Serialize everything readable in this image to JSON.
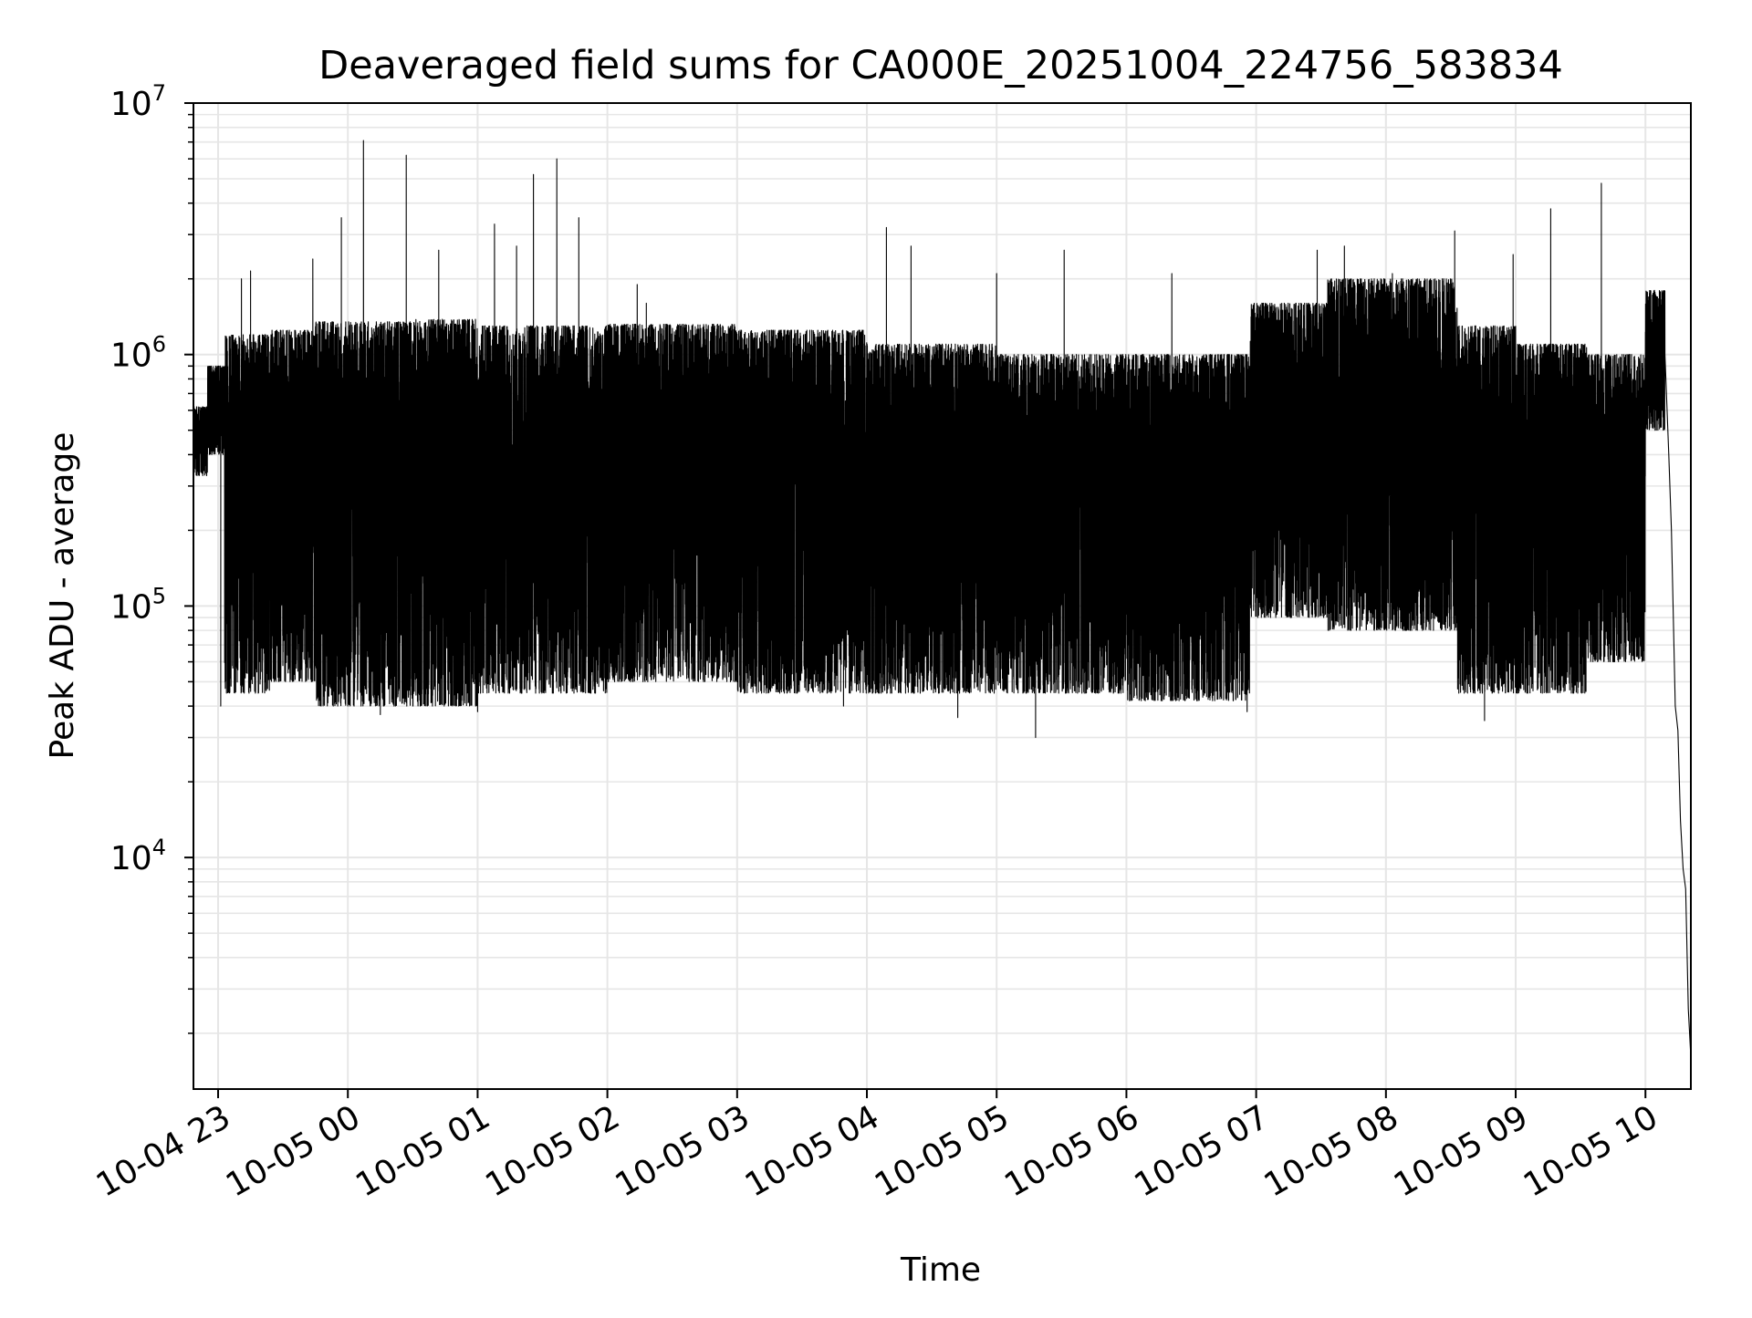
{
  "chart_data": {
    "type": "line",
    "title": "Deaveraged field sums for CA000E_20251004_224756_583834",
    "xlabel": "Time",
    "ylabel": "Peak ADU - average",
    "yscale": "log",
    "ylim": [
      1200,
      10000000
    ],
    "xlim_hours": [
      -1.19,
      10.35
    ],
    "grid": true,
    "line_color": "#000000",
    "grid_color": "#e6e6e6",
    "x_ticks": [
      {
        "hour": -1,
        "label": "10-04 23"
      },
      {
        "hour": 0,
        "label": "10-05 00"
      },
      {
        "hour": 1,
        "label": "10-05 01"
      },
      {
        "hour": 2,
        "label": "10-05 02"
      },
      {
        "hour": 3,
        "label": "10-05 03"
      },
      {
        "hour": 4,
        "label": "10-05 04"
      },
      {
        "hour": 5,
        "label": "10-05 05"
      },
      {
        "hour": 6,
        "label": "10-05 06"
      },
      {
        "hour": 7,
        "label": "10-05 07"
      },
      {
        "hour": 8,
        "label": "10-05 08"
      },
      {
        "hour": 9,
        "label": "10-05 09"
      },
      {
        "hour": 10,
        "label": "10-05 10"
      }
    ],
    "y_ticks": [
      {
        "value": 10000,
        "base": "10",
        "exp": "4"
      },
      {
        "value": 100000,
        "base": "10",
        "exp": "5"
      },
      {
        "value": 1000000,
        "base": "10",
        "exp": "6"
      },
      {
        "value": 10000000,
        "base": "10",
        "exp": "7"
      }
    ],
    "series": [
      {
        "name": "Peak ADU - average",
        "segments": [
          {
            "start": -1.19,
            "end": -1.08,
            "low": 330000,
            "high": 620000
          },
          {
            "start": -1.08,
            "end": -0.95,
            "low": 400000,
            "high": 900000
          },
          {
            "start": -0.95,
            "end": -0.6,
            "low": 45000,
            "high": 1200000
          },
          {
            "start": -0.6,
            "end": -0.25,
            "low": 50000,
            "high": 1250000
          },
          {
            "start": -0.25,
            "end": 0.5,
            "low": 40000,
            "high": 1350000
          },
          {
            "start": 0.5,
            "end": 1.0,
            "low": 40000,
            "high": 1380000
          },
          {
            "start": 1.0,
            "end": 2.0,
            "low": 45000,
            "high": 1300000
          },
          {
            "start": 2.0,
            "end": 3.0,
            "low": 50000,
            "high": 1320000
          },
          {
            "start": 3.0,
            "end": 4.0,
            "low": 45000,
            "high": 1250000
          },
          {
            "start": 4.0,
            "end": 5.0,
            "low": 45000,
            "high": 1100000
          },
          {
            "start": 5.0,
            "end": 6.0,
            "low": 45000,
            "high": 1000000
          },
          {
            "start": 6.0,
            "end": 6.95,
            "low": 42000,
            "high": 1000000
          },
          {
            "start": 6.95,
            "end": 7.55,
            "low": 90000,
            "high": 1600000
          },
          {
            "start": 7.55,
            "end": 8.55,
            "low": 80000,
            "high": 2000000
          },
          {
            "start": 8.55,
            "end": 9.0,
            "low": 45000,
            "high": 1300000
          },
          {
            "start": 9.0,
            "end": 9.55,
            "low": 45000,
            "high": 1100000
          },
          {
            "start": 9.55,
            "end": 10.0,
            "low": 60000,
            "high": 1000000
          },
          {
            "start": 10.0,
            "end": 10.15,
            "low": 500000,
            "high": 1800000
          }
        ],
        "spikes": [
          {
            "hour": -0.82,
            "value": 2000000
          },
          {
            "hour": -0.75,
            "value": 2150000
          },
          {
            "hour": -0.5,
            "value": 1250000
          },
          {
            "hour": -0.27,
            "value": 2400000
          },
          {
            "hour": -0.05,
            "value": 3500000
          },
          {
            "hour": 0.12,
            "value": 7100000
          },
          {
            "hour": 0.45,
            "value": 6200000
          },
          {
            "hour": 0.7,
            "value": 2600000
          },
          {
            "hour": 1.13,
            "value": 3300000
          },
          {
            "hour": 1.3,
            "value": 2700000
          },
          {
            "hour": 1.43,
            "value": 5200000
          },
          {
            "hour": 1.61,
            "value": 6000000
          },
          {
            "hour": 1.78,
            "value": 3500000
          },
          {
            "hour": 2.23,
            "value": 1900000
          },
          {
            "hour": 2.3,
            "value": 1600000
          },
          {
            "hour": 4.15,
            "value": 3200000
          },
          {
            "hour": 4.34,
            "value": 2700000
          },
          {
            "hour": 5.0,
            "value": 2100000
          },
          {
            "hour": 5.52,
            "value": 2600000
          },
          {
            "hour": 6.35,
            "value": 2100000
          },
          {
            "hour": 7.47,
            "value": 2600000
          },
          {
            "hour": 7.68,
            "value": 2700000
          },
          {
            "hour": 8.05,
            "value": 2100000
          },
          {
            "hour": 8.53,
            "value": 3100000
          },
          {
            "hour": 8.98,
            "value": 2500000
          },
          {
            "hour": 9.27,
            "value": 3800000
          },
          {
            "hour": 9.66,
            "value": 4800000
          }
        ],
        "dips": [
          {
            "hour": -0.98,
            "value": 40000
          },
          {
            "hour": 0.25,
            "value": 37000
          },
          {
            "hour": 1.0,
            "value": 38000
          },
          {
            "hour": 3.82,
            "value": 40000
          },
          {
            "hour": 4.7,
            "value": 36000
          },
          {
            "hour": 5.3,
            "value": 30000
          },
          {
            "hour": 6.93,
            "value": 38000
          },
          {
            "hour": 8.76,
            "value": 35000
          }
        ],
        "tail": [
          {
            "hour": 10.15,
            "value": 1000000
          },
          {
            "hour": 10.18,
            "value": 400000
          },
          {
            "hour": 10.2,
            "value": 200000
          },
          {
            "hour": 10.23,
            "value": 40000
          },
          {
            "hour": 10.25,
            "value": 32000
          },
          {
            "hour": 10.27,
            "value": 14000
          },
          {
            "hour": 10.29,
            "value": 9000
          },
          {
            "hour": 10.31,
            "value": 7500
          },
          {
            "hour": 10.33,
            "value": 2500
          },
          {
            "hour": 10.35,
            "value": 1600
          }
        ]
      }
    ]
  }
}
